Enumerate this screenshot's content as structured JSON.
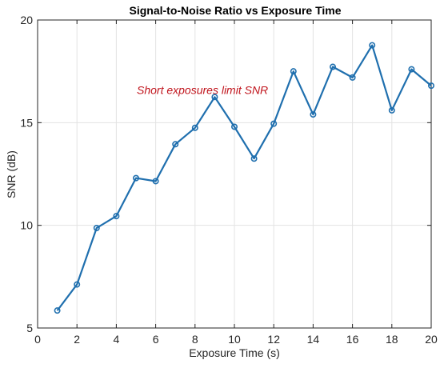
{
  "chart_data": {
    "type": "line",
    "title": "Signal-to-Noise Ratio vs Exposure Time",
    "xlabel": "Exposure Time (s)",
    "ylabel": "SNR (dB)",
    "xlim": [
      0,
      20
    ],
    "ylim": [
      5,
      20
    ],
    "xticks": [
      0,
      2,
      4,
      6,
      8,
      10,
      12,
      14,
      16,
      18,
      20
    ],
    "yticks": [
      5,
      10,
      15,
      20
    ],
    "grid": true,
    "marker": "circle",
    "line_color": "#1f6fae",
    "annotation": {
      "text": "Short exposures limit SNR",
      "x": 5,
      "y": 16.6,
      "color": "#c0141c"
    },
    "series": [
      {
        "x": [
          1,
          2,
          3,
          4,
          5,
          6,
          7,
          8,
          9,
          10,
          11,
          12,
          13,
          14,
          15,
          16,
          17,
          18,
          19,
          20
        ],
        "values": [
          5.85,
          7.12,
          9.87,
          10.45,
          12.3,
          12.15,
          13.95,
          14.75,
          16.25,
          14.8,
          13.25,
          14.95,
          17.5,
          15.4,
          17.72,
          17.2,
          18.77,
          15.6,
          17.6,
          16.8
        ]
      }
    ]
  }
}
